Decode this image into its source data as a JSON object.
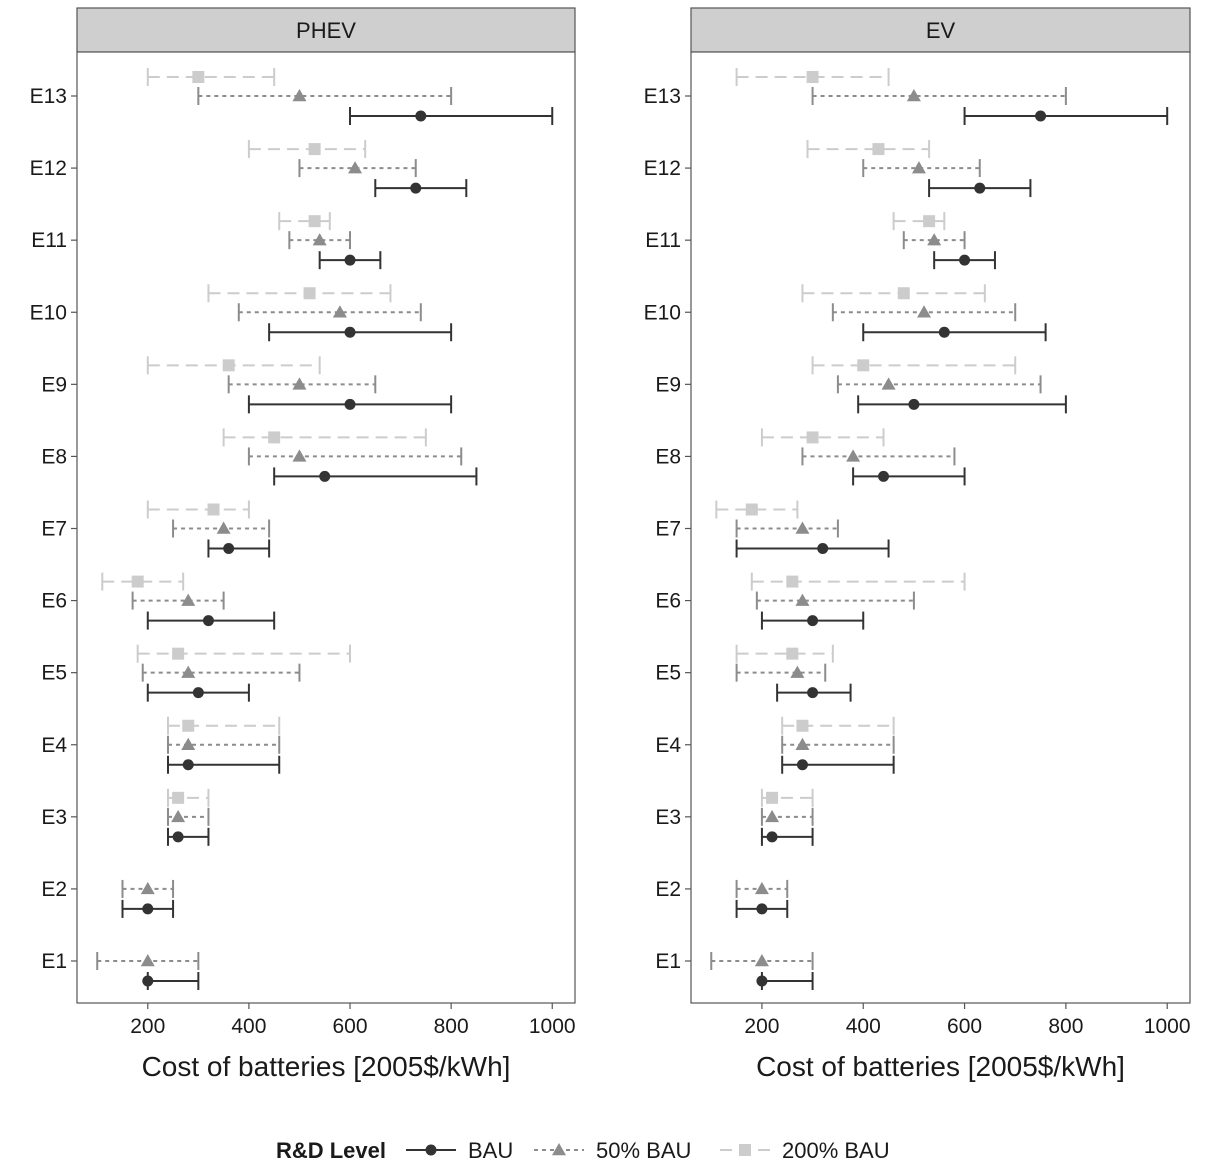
{
  "chart_data": {
    "type": "errorbar",
    "panels": [
      "PHEV",
      "EV"
    ],
    "xlabel": "Cost of batteries [2005$/kWh]",
    "xlim": [
      60,
      1045
    ],
    "xticks": [
      200,
      400,
      600,
      800,
      1000
    ],
    "categories": [
      "E1",
      "E2",
      "E3",
      "E4",
      "E5",
      "E6",
      "E7",
      "E8",
      "E9",
      "E10",
      "E11",
      "E12",
      "E13"
    ],
    "legend": {
      "title": "R&D Level",
      "position": "bottom",
      "entries": [
        "BAU",
        "50% BAU",
        "200% BAU"
      ]
    },
    "series": [
      {
        "name": "BAU",
        "marker": "circle",
        "color": "#333333",
        "line": "solid",
        "panels": {
          "PHEV": [
            {
              "cat": "E1",
              "mid": 200,
              "low": 200,
              "high": 300
            },
            {
              "cat": "E2",
              "mid": 200,
              "low": 150,
              "high": 250
            },
            {
              "cat": "E3",
              "mid": 260,
              "low": 240,
              "high": 320
            },
            {
              "cat": "E4",
              "mid": 280,
              "low": 240,
              "high": 460
            },
            {
              "cat": "E5",
              "mid": 300,
              "low": 200,
              "high": 400
            },
            {
              "cat": "E6",
              "mid": 320,
              "low": 200,
              "high": 450
            },
            {
              "cat": "E7",
              "mid": 360,
              "low": 320,
              "high": 440
            },
            {
              "cat": "E8",
              "mid": 550,
              "low": 450,
              "high": 850
            },
            {
              "cat": "E9",
              "mid": 600,
              "low": 400,
              "high": 800
            },
            {
              "cat": "E10",
              "mid": 600,
              "low": 440,
              "high": 800
            },
            {
              "cat": "E11",
              "mid": 600,
              "low": 540,
              "high": 660
            },
            {
              "cat": "E12",
              "mid": 730,
              "low": 650,
              "high": 830
            },
            {
              "cat": "E13",
              "mid": 740,
              "low": 600,
              "high": 1000
            }
          ],
          "EV": [
            {
              "cat": "E1",
              "mid": 200,
              "low": 200,
              "high": 300
            },
            {
              "cat": "E2",
              "mid": 200,
              "low": 150,
              "high": 250
            },
            {
              "cat": "E3",
              "mid": 220,
              "low": 200,
              "high": 300
            },
            {
              "cat": "E4",
              "mid": 280,
              "low": 240,
              "high": 460
            },
            {
              "cat": "E5",
              "mid": 300,
              "low": 230,
              "high": 375
            },
            {
              "cat": "E6",
              "mid": 300,
              "low": 200,
              "high": 400
            },
            {
              "cat": "E7",
              "mid": 320,
              "low": 150,
              "high": 450
            },
            {
              "cat": "E8",
              "mid": 440,
              "low": 380,
              "high": 600
            },
            {
              "cat": "E9",
              "mid": 500,
              "low": 390,
              "high": 800
            },
            {
              "cat": "E10",
              "mid": 560,
              "low": 400,
              "high": 760
            },
            {
              "cat": "E11",
              "mid": 600,
              "low": 540,
              "high": 660
            },
            {
              "cat": "E12",
              "mid": 630,
              "low": 530,
              "high": 730
            },
            {
              "cat": "E13",
              "mid": 750,
              "low": 600,
              "high": 1000
            }
          ]
        }
      },
      {
        "name": "50% BAU",
        "marker": "triangle",
        "color": "#8c8c8c",
        "line": "dotted",
        "panels": {
          "PHEV": [
            {
              "cat": "E1",
              "mid": 200,
              "low": 100,
              "high": 300
            },
            {
              "cat": "E2",
              "mid": 200,
              "low": 150,
              "high": 250
            },
            {
              "cat": "E3",
              "mid": 260,
              "low": 240,
              "high": 320
            },
            {
              "cat": "E4",
              "mid": 280,
              "low": 240,
              "high": 460
            },
            {
              "cat": "E5",
              "mid": 280,
              "low": 190,
              "high": 500
            },
            {
              "cat": "E6",
              "mid": 280,
              "low": 170,
              "high": 350
            },
            {
              "cat": "E7",
              "mid": 350,
              "low": 250,
              "high": 440
            },
            {
              "cat": "E8",
              "mid": 500,
              "low": 400,
              "high": 820
            },
            {
              "cat": "E9",
              "mid": 500,
              "low": 360,
              "high": 650
            },
            {
              "cat": "E10",
              "mid": 580,
              "low": 380,
              "high": 740
            },
            {
              "cat": "E11",
              "mid": 540,
              "low": 480,
              "high": 600
            },
            {
              "cat": "E12",
              "mid": 610,
              "low": 500,
              "high": 730
            },
            {
              "cat": "E13",
              "mid": 500,
              "low": 300,
              "high": 800
            }
          ],
          "EV": [
            {
              "cat": "E1",
              "mid": 200,
              "low": 100,
              "high": 300
            },
            {
              "cat": "E2",
              "mid": 200,
              "low": 150,
              "high": 250
            },
            {
              "cat": "E3",
              "mid": 220,
              "low": 200,
              "high": 300
            },
            {
              "cat": "E4",
              "mid": 280,
              "low": 240,
              "high": 460
            },
            {
              "cat": "E5",
              "mid": 270,
              "low": 150,
              "high": 325
            },
            {
              "cat": "E6",
              "mid": 280,
              "low": 190,
              "high": 500
            },
            {
              "cat": "E7",
              "mid": 280,
              "low": 150,
              "high": 350
            },
            {
              "cat": "E8",
              "mid": 380,
              "low": 280,
              "high": 580
            },
            {
              "cat": "E9",
              "mid": 450,
              "low": 350,
              "high": 750
            },
            {
              "cat": "E10",
              "mid": 520,
              "low": 340,
              "high": 700
            },
            {
              "cat": "E11",
              "mid": 540,
              "low": 480,
              "high": 600
            },
            {
              "cat": "E12",
              "mid": 510,
              "low": 400,
              "high": 630
            },
            {
              "cat": "E13",
              "mid": 500,
              "low": 300,
              "high": 800
            }
          ]
        }
      },
      {
        "name": "200% BAU",
        "marker": "square",
        "color": "#cccccc",
        "line": "dashed",
        "panels": {
          "PHEV": [
            {
              "cat": "E3",
              "mid": 260,
              "low": 240,
              "high": 320
            },
            {
              "cat": "E4",
              "mid": 280,
              "low": 240,
              "high": 460
            },
            {
              "cat": "E5",
              "mid": 260,
              "low": 180,
              "high": 600
            },
            {
              "cat": "E6",
              "mid": 180,
              "low": 110,
              "high": 270
            },
            {
              "cat": "E7",
              "mid": 330,
              "low": 200,
              "high": 400
            },
            {
              "cat": "E8",
              "mid": 450,
              "low": 350,
              "high": 750
            },
            {
              "cat": "E9",
              "mid": 360,
              "low": 200,
              "high": 540
            },
            {
              "cat": "E10",
              "mid": 520,
              "low": 320,
              "high": 680
            },
            {
              "cat": "E11",
              "mid": 530,
              "low": 460,
              "high": 560
            },
            {
              "cat": "E12",
              "mid": 530,
              "low": 400,
              "high": 630
            },
            {
              "cat": "E13",
              "mid": 300,
              "low": 200,
              "high": 450
            }
          ],
          "EV": [
            {
              "cat": "E3",
              "mid": 220,
              "low": 200,
              "high": 300
            },
            {
              "cat": "E4",
              "mid": 280,
              "low": 240,
              "high": 460
            },
            {
              "cat": "E5",
              "mid": 260,
              "low": 150,
              "high": 340
            },
            {
              "cat": "E6",
              "mid": 260,
              "low": 180,
              "high": 600
            },
            {
              "cat": "E7",
              "mid": 180,
              "low": 110,
              "high": 270
            },
            {
              "cat": "E8",
              "mid": 300,
              "low": 200,
              "high": 440
            },
            {
              "cat": "E9",
              "mid": 400,
              "low": 300,
              "high": 700
            },
            {
              "cat": "E10",
              "mid": 480,
              "low": 280,
              "high": 640
            },
            {
              "cat": "E11",
              "mid": 530,
              "low": 460,
              "high": 560
            },
            {
              "cat": "E12",
              "mid": 430,
              "low": 290,
              "high": 530
            },
            {
              "cat": "E13",
              "mid": 300,
              "low": 150,
              "high": 450
            }
          ]
        }
      }
    ]
  }
}
